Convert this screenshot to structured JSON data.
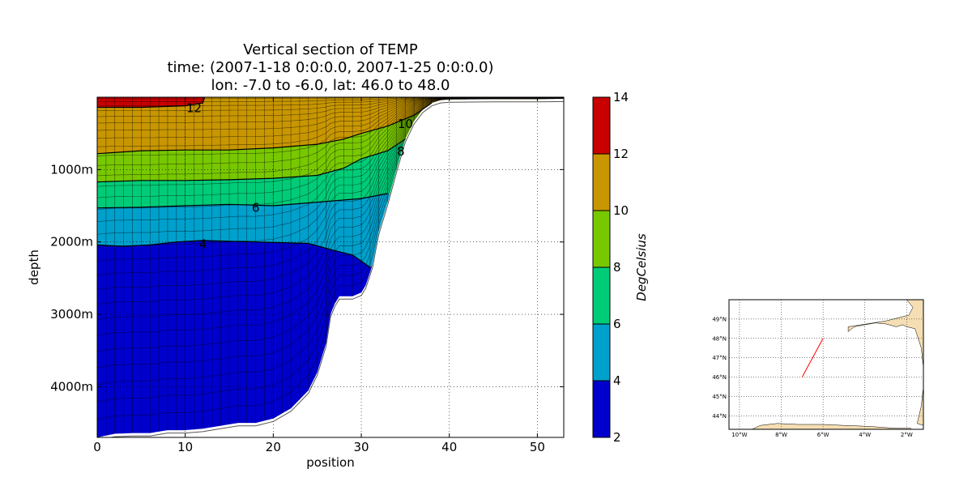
{
  "chart_data": [
    {
      "type": "filled-contour-section",
      "title_lines": [
        "Vertical section of TEMP",
        "time: (2007-1-18 0:0:0.0, 2007-1-25 0:0:0.0)",
        "lon: -7.0 to -6.0, lat: 46.0 to 48.0"
      ],
      "xlabel": "position",
      "ylabel": "depth",
      "xlim": [
        0,
        53
      ],
      "ylim": [
        4700,
        0
      ],
      "x_ticks": [
        0,
        10,
        20,
        30,
        40,
        50
      ],
      "x_tick_labels": [
        "0",
        "10",
        "20",
        "30",
        "40",
        "50"
      ],
      "y_ticks": [
        1000,
        2000,
        3000,
        4000
      ],
      "y_tick_labels": [
        "1000m",
        "2000m",
        "3000m",
        "4000m"
      ],
      "grid": true,
      "bathymetry_x": [
        0,
        2,
        4,
        6,
        8,
        10,
        12,
        14,
        16,
        18,
        20,
        22,
        24,
        25,
        26,
        26.5,
        27,
        27.5,
        28,
        29,
        30,
        30.5,
        31,
        31.3,
        31.6,
        32,
        33,
        34,
        35,
        36,
        37,
        38,
        39,
        40,
        45,
        50,
        53
      ],
      "bathymetry_y": [
        4700,
        4650,
        4640,
        4640,
        4600,
        4600,
        4580,
        4540,
        4500,
        4500,
        4440,
        4300,
        4050,
        3800,
        3400,
        3000,
        2850,
        2750,
        2750,
        2750,
        2700,
        2600,
        2420,
        2300,
        2100,
        1850,
        1450,
        1000,
        580,
        330,
        170,
        80,
        40,
        30,
        25,
        25,
        20
      ],
      "contour_levels": [
        2,
        4,
        6,
        8,
        10,
        12,
        14
      ],
      "contour_labels": [
        {
          "text": "12",
          "x": 11,
          "y": 150
        },
        {
          "text": "10",
          "x": 35,
          "y": 370
        },
        {
          "text": "8",
          "x": 34.5,
          "y": 750
        },
        {
          "text": "6",
          "x": 18,
          "y": 1530
        },
        {
          "text": "4",
          "x": 12,
          "y": 2030
        }
      ],
      "isotherms": [
        {
          "level": 12,
          "x": [
            0,
            5,
            10,
            12,
            12.2
          ],
          "y": [
            140,
            140,
            120,
            80,
            0
          ]
        },
        {
          "level": 10,
          "x": [
            0,
            5,
            10,
            15,
            20,
            25,
            28,
            30,
            33,
            36,
            38
          ],
          "y": [
            780,
            740,
            730,
            730,
            700,
            650,
            580,
            500,
            400,
            250,
            130
          ]
        },
        {
          "level": 8,
          "x": [
            0,
            5,
            10,
            15,
            20,
            25,
            28,
            30,
            33,
            35
          ],
          "y": [
            1170,
            1150,
            1150,
            1140,
            1120,
            1080,
            980,
            850,
            740,
            600
          ]
        },
        {
          "level": 6,
          "x": [
            0,
            5,
            10,
            15,
            20,
            25,
            30,
            33
          ],
          "y": [
            1530,
            1520,
            1500,
            1480,
            1500,
            1450,
            1400,
            1330
          ]
        },
        {
          "level": 4,
          "x": [
            0,
            3,
            6,
            9,
            12,
            15,
            18,
            21,
            24,
            27,
            29,
            31
          ],
          "y": [
            2040,
            2060,
            2040,
            2000,
            1980,
            1990,
            2000,
            2010,
            2020,
            2120,
            2180,
            2350
          ]
        }
      ],
      "colorbar": {
        "label": "DegCelsius",
        "boundaries": [
          2,
          4,
          6,
          8,
          10,
          12,
          14
        ],
        "tick_labels": [
          "2",
          "4",
          "6",
          "8",
          "10",
          "12",
          "14"
        ],
        "colors": [
          "#0000cc",
          "#00a0cc",
          "#00cc78",
          "#78c800",
          "#c89600",
          "#c80000"
        ]
      }
    },
    {
      "type": "map",
      "lon_range": [
        -10.5,
        -1.2
      ],
      "lat_range": [
        43.3,
        50.0
      ],
      "lon_ticks": [
        -10,
        -8,
        -6,
        -4,
        -2
      ],
      "lon_tick_labels": [
        "10°W",
        "8°W",
        "6°W",
        "4°W",
        "2°W"
      ],
      "lat_ticks": [
        44,
        45,
        46,
        47,
        48,
        49
      ],
      "lat_tick_labels": [
        "44°N",
        "45°N",
        "46°N",
        "47°N",
        "48°N",
        "49°N"
      ],
      "section_line": {
        "lon": [
          -7.0,
          -6.0
        ],
        "lat": [
          46.0,
          48.0
        ],
        "color": "#ff0000"
      },
      "land_color": "#f5deb3",
      "coast_lon": [
        -4.8,
        -4.5,
        -4.0,
        -3.5,
        -3.0,
        -2.5,
        -2.2,
        -2.0,
        -1.6,
        -1.3,
        -1.2,
        -1.2,
        -1.2,
        -1.3,
        -1.5,
        -1.2,
        -1.2
      ],
      "coast_lat": [
        48.35,
        48.6,
        48.7,
        48.8,
        48.75,
        48.6,
        48.7,
        48.6,
        48.5,
        47.5,
        46.5,
        46.0,
        45.5,
        44.5,
        43.6,
        43.5,
        49.9
      ]
    }
  ]
}
